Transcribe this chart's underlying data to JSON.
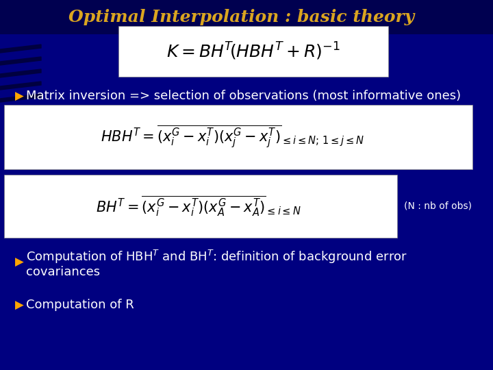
{
  "title": "Optimal Interpolation : basic theory",
  "title_color": "#DAA520",
  "title_fontsize": 18,
  "background_color": "#000080",
  "bullet_color": "#FFA500",
  "bullet_text_color": "#FFFFFF",
  "note": "(N : nb of obs)",
  "bullet1": "Matrix inversion => selection of observations (most informative ones)",
  "bullet2_line1": "Computation of HBHT and BHT: definition of background error",
  "bullet2_line2": "covariances",
  "bullet3": "Computation of R",
  "formula_box_color": "#FFFFFF",
  "formula_text_color": "#000000",
  "note_color": "#FFFFFF",
  "note_fontsize": 10,
  "bullet_fontsize": 13
}
